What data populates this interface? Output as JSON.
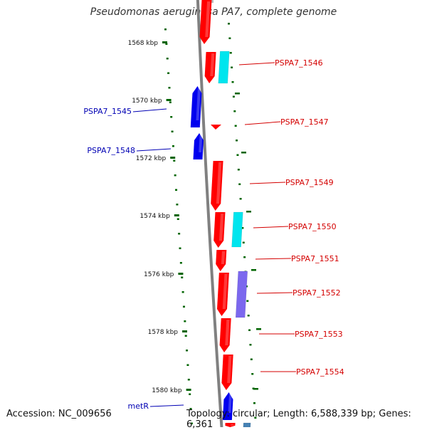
{
  "title": "Pseudomonas aeruginosa PA7, complete genome",
  "footer": {
    "accession": "Accession: NC_009656",
    "topology": "Topology: circular; Length: 6,588,339 bp; Genes: 6,361"
  },
  "ticks": [
    "1568 kbp",
    "1570 kbp",
    "1572 kbp",
    "1574 kbp",
    "1576 kbp",
    "1578 kbp",
    "1580 kbp"
  ],
  "genes_outer": [
    "PSPA7_1546",
    "PSPA7_1547",
    "PSPA7_1549",
    "PSPA7_1550",
    "PSPA7_1551",
    "PSPA7_1552",
    "PSPA7_1553",
    "PSPA7_1554"
  ],
  "genes_inner": [
    "PSPA7_1545",
    "PSPA7_1548",
    "metR"
  ],
  "colors": {
    "forward": "#ff0000",
    "reverse": "#0000ee",
    "cyan_track": "#00e5ee",
    "purple_track": "#7b68ee",
    "label_forward": "#d40000",
    "label_reverse": "#0000b4",
    "tick": "#006400",
    "backbone": "#808080"
  }
}
